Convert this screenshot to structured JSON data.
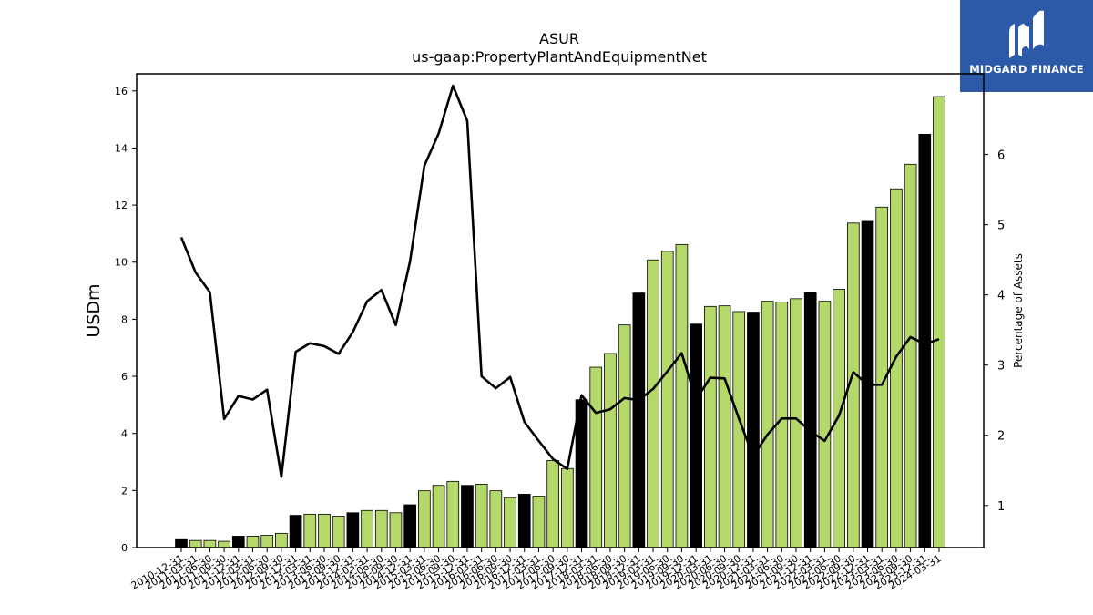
{
  "brand": {
    "name": "MIDGARD FINANCE",
    "bg_color": "#2d5aa8"
  },
  "chart_data": {
    "type": "bar",
    "title": "ASUR",
    "subtitle": "us-gaap:PropertyPlantAndEquipmentNet",
    "ylabel": "USDm",
    "y2label": "Percentage of Assets",
    "ylim": [
      0,
      16.6
    ],
    "y2lim": [
      0.4,
      7.15
    ],
    "yticks": [
      0,
      2,
      4,
      6,
      8,
      10,
      12,
      14,
      16
    ],
    "y2ticks": [
      1,
      2,
      3,
      4,
      5,
      6
    ],
    "colors": {
      "annual": "#000000",
      "quarterly": "#b5d86a",
      "line": "#000000"
    },
    "categories": [
      "2010-12-31",
      "2011-03-31",
      "2011-06-30",
      "2011-09-30",
      "2011-12-31",
      "2012-03-31",
      "2012-06-30",
      "2012-09-30",
      "2012-12-31",
      "2013-03-31",
      "2013-06-30",
      "2013-09-30",
      "2013-12-31",
      "2014-03-31",
      "2014-06-30",
      "2014-09-30",
      "2014-12-31",
      "2015-03-31",
      "2015-06-30",
      "2015-09-30",
      "2015-12-31",
      "2016-03-31",
      "2016-06-30",
      "2016-09-30",
      "2016-12-31",
      "2017-03-31",
      "2017-06-30",
      "2017-09-30",
      "2017-12-31",
      "2018-03-31",
      "2018-06-30",
      "2018-09-30",
      "2018-12-31",
      "2019-03-31",
      "2019-06-30",
      "2019-09-30",
      "2019-12-31",
      "2020-03-31",
      "2020-06-30",
      "2020-09-30",
      "2020-12-31",
      "2021-03-31",
      "2021-06-30",
      "2021-09-30",
      "2021-12-31",
      "2022-03-31",
      "2022-06-30",
      "2022-09-30",
      "2022-12-31",
      "2023-03-31",
      "2023-06-30",
      "2023-09-30",
      "2023-12-31",
      "2024-03-31"
    ],
    "series": [
      {
        "type": "bar",
        "values": [
          0.28,
          0.25,
          0.25,
          0.22,
          0.4,
          0.4,
          0.43,
          0.5,
          1.13,
          1.17,
          1.17,
          1.1,
          1.22,
          1.3,
          1.3,
          1.22,
          1.5,
          1.99,
          2.18,
          2.32,
          2.18,
          2.22,
          1.99,
          1.75,
          1.87,
          1.8,
          3.05,
          2.77,
          5.18,
          6.32,
          6.8,
          7.8,
          8.92,
          10.08,
          10.38,
          10.62,
          7.83,
          8.45,
          8.47,
          8.27,
          8.25,
          8.63,
          8.6,
          8.72,
          8.93,
          8.63,
          9.05,
          11.37,
          11.43,
          11.93,
          12.57,
          13.43,
          14.48,
          15.8
        ],
        "annual": [
          true,
          false,
          false,
          false,
          true,
          false,
          false,
          false,
          true,
          false,
          false,
          false,
          true,
          false,
          false,
          false,
          true,
          false,
          false,
          false,
          true,
          false,
          false,
          false,
          true,
          false,
          false,
          false,
          true,
          false,
          false,
          false,
          true,
          false,
          false,
          false,
          true,
          false,
          false,
          false,
          true,
          false,
          false,
          false,
          true,
          false,
          false,
          false,
          true,
          false,
          false,
          false,
          true,
          false
        ]
      },
      {
        "type": "line",
        "axis": "right",
        "values": [
          4.82,
          4.32,
          4.04,
          2.23,
          2.56,
          2.51,
          2.65,
          1.41,
          3.19,
          3.31,
          3.27,
          3.16,
          3.47,
          3.91,
          4.07,
          3.57,
          4.48,
          5.84,
          6.3,
          6.98,
          6.48,
          2.84,
          2.67,
          2.83,
          2.19,
          1.92,
          1.66,
          1.52,
          2.57,
          2.32,
          2.37,
          2.53,
          2.5,
          2.66,
          2.91,
          3.17,
          2.51,
          2.82,
          2.81,
          2.24,
          1.7,
          2.01,
          2.24,
          2.24,
          2.06,
          1.92,
          2.28,
          2.9,
          2.72,
          2.72,
          3.12,
          3.4,
          3.3,
          3.37
        ]
      }
    ]
  }
}
